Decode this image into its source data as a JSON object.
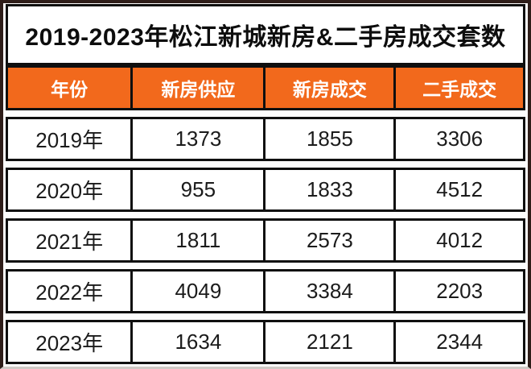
{
  "title": "2019-2023年松江新城新房&二手房成交套数",
  "colors": {
    "accent_orange": "#F2691C",
    "cell_border_black": "#0F0F0F",
    "outer_frame": "#2E1D19",
    "header_text": "#FFFFFF",
    "body_text": "#1B1B1B"
  },
  "table": {
    "headers": [
      "年份",
      "新房供应",
      "新房成交",
      "二手成交"
    ],
    "rows": [
      [
        "2019年",
        "1373",
        "1855",
        "3306"
      ],
      [
        "2020年",
        "955",
        "1833",
        "4512"
      ],
      [
        "2021年",
        "1811",
        "2573",
        "4012"
      ],
      [
        "2022年",
        "4049",
        "3384",
        "2203"
      ],
      [
        "2023年",
        "1634",
        "2121",
        "2344"
      ]
    ]
  },
  "chart_data": {
    "type": "table",
    "title": "2019-2023年松江新城新房&二手房成交套数",
    "columns": [
      "年份",
      "新房供应",
      "新房成交",
      "二手成交"
    ],
    "categories": [
      "2019年",
      "2020年",
      "2021年",
      "2022年",
      "2023年"
    ],
    "series": [
      {
        "name": "新房供应",
        "values": [
          1373,
          955,
          1811,
          4049,
          1634
        ]
      },
      {
        "name": "新房成交",
        "values": [
          1855,
          1833,
          2573,
          3384,
          2121
        ]
      },
      {
        "name": "二手成交",
        "values": [
          3306,
          4512,
          4012,
          2203,
          2344
        ]
      }
    ]
  }
}
